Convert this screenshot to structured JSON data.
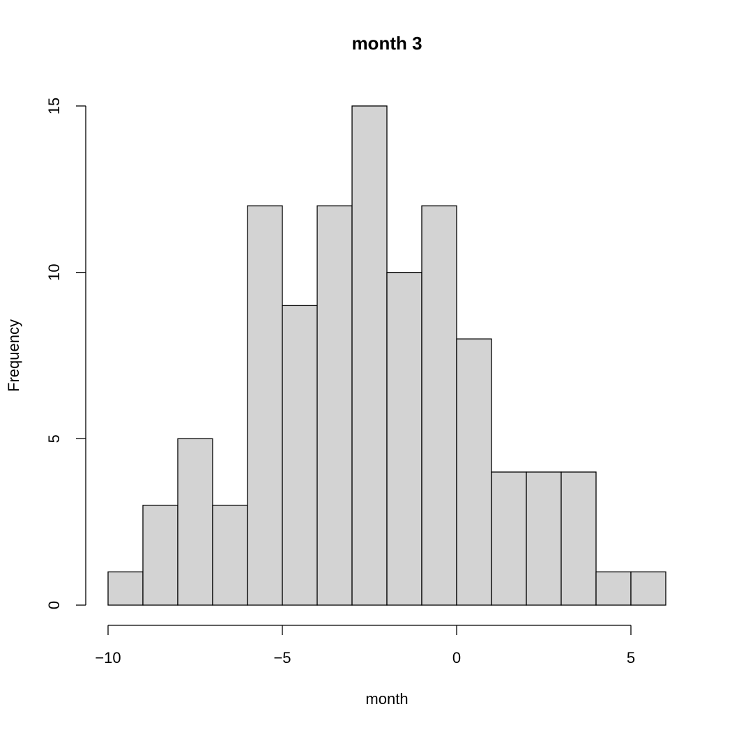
{
  "chart_data": {
    "type": "bar",
    "title": "month 3",
    "xlabel": "month",
    "ylabel": "Frequency",
    "bin_edges": [
      -10,
      -9,
      -8,
      -7,
      -6,
      -5,
      -4,
      -3,
      -2,
      -1,
      0,
      1,
      2,
      3,
      4,
      5,
      6
    ],
    "values": [
      1,
      3,
      5,
      3,
      12,
      9,
      12,
      15,
      10,
      12,
      8,
      4,
      4,
      4,
      1,
      1
    ],
    "xticks": [
      -10,
      -5,
      0,
      5
    ],
    "xtick_labels": [
      "−10",
      "−5",
      "0",
      "5"
    ],
    "yticks": [
      0,
      5,
      10,
      15
    ],
    "ytick_labels": [
      "0",
      "5",
      "10",
      "15"
    ],
    "xlim": [
      -10,
      5
    ],
    "ylim": [
      0,
      15
    ],
    "bar_color": "#d3d3d3",
    "grid": false,
    "legend": "none"
  }
}
